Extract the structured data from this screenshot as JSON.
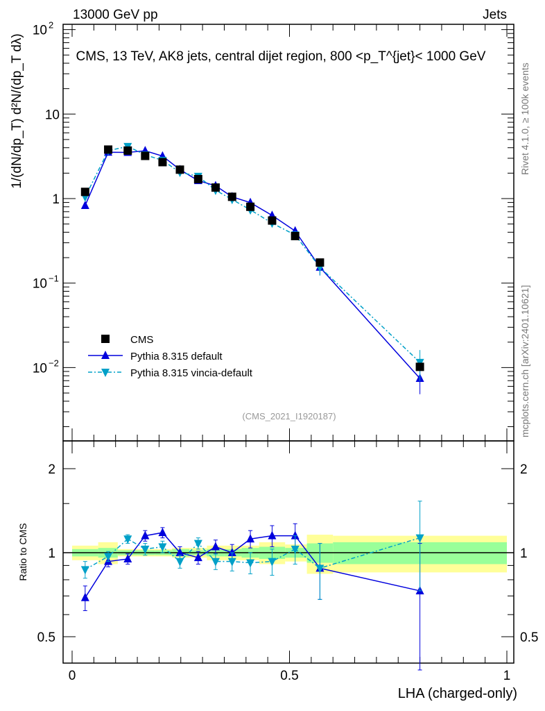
{
  "header": {
    "left": "13000 GeV pp",
    "right": "Jets"
  },
  "side": {
    "rivet": "Rivet 4.1.0, ≥ 100k events",
    "mcplots": "mcplots.cern.ch [arXiv:2401.10621]"
  },
  "chart_data": [
    {
      "type": "scatter",
      "title": "CMS, 13 TeV, AK8 jets, central dijet region, 800 <p_T^{jet}< 1000 GeV",
      "ylabel": "1/(dN/dp_T) d²N/(dp_T dλ)",
      "yscale": "log",
      "ylim": [
        0.00135,
        120
      ],
      "yticks": [
        "10^-2",
        "10^-1",
        "1",
        "10",
        "10^2"
      ],
      "annotation": "(CMS_2021_I1920187)",
      "x": [
        0.03,
        0.083,
        0.128,
        0.168,
        0.208,
        0.248,
        0.29,
        0.33,
        0.368,
        0.41,
        0.46,
        0.513,
        0.57,
        0.8
      ],
      "bin_edges": [
        0,
        0.06,
        0.105,
        0.15,
        0.19,
        0.23,
        0.27,
        0.31,
        0.35,
        0.39,
        0.43,
        0.49,
        0.54,
        0.6,
        1.0
      ],
      "series": [
        {
          "name": "CMS",
          "marker": "square",
          "color": "#000000",
          "values": [
            1.2,
            3.8,
            3.7,
            3.2,
            2.7,
            2.2,
            1.7,
            1.35,
            1.05,
            0.8,
            0.55,
            0.36,
            0.175,
            0.0102
          ]
        },
        {
          "name": "Pythia 8.315 default",
          "marker": "triangle-up",
          "color": "#0000dd",
          "ratio": [
            0.69,
            0.93,
            0.95,
            1.15,
            1.18,
            1.0,
            0.96,
            1.05,
            1.0,
            1.12,
            1.15,
            1.15,
            0.88,
            0.73
          ],
          "ratio_err": [
            0.07,
            0.04,
            0.04,
            0.05,
            0.05,
            0.05,
            0.05,
            0.06,
            0.07,
            0.08,
            0.1,
            0.12,
            0.2,
            0.35
          ]
        },
        {
          "name": "Pythia 8.315 vincia-default",
          "marker": "triangle-down",
          "color": "#00a0c8",
          "ratio": [
            0.87,
            0.97,
            1.12,
            1.03,
            1.05,
            0.93,
            1.08,
            0.93,
            0.93,
            0.92,
            0.93,
            1.03,
            0.88,
            1.13
          ],
          "ratio_err": [
            0.06,
            0.04,
            0.04,
            0.05,
            0.05,
            0.05,
            0.05,
            0.06,
            0.07,
            0.08,
            0.1,
            0.12,
            0.2,
            0.4
          ]
        }
      ],
      "legend": "bottom-left"
    },
    {
      "type": "scatter",
      "ylabel": "Ratio to CMS",
      "xlabel": "LHA (charged-only)",
      "yscale": "log",
      "ylim": [
        0.4,
        2.5
      ],
      "yticks": [
        "0.5",
        "1",
        "2"
      ],
      "xticks": [
        "0",
        "0.5",
        "1"
      ],
      "band_yellow": [
        0.06,
        0.09,
        0.03,
        0.03,
        0.03,
        0.04,
        0.04,
        0.06,
        0.06,
        0.06,
        0.09,
        0.07,
        0.16,
        0.15
      ],
      "band_green": [
        0.03,
        0.04,
        0.02,
        0.02,
        0.02,
        0.03,
        0.02,
        0.03,
        0.03,
        0.04,
        0.05,
        0.04,
        0.08,
        0.09
      ]
    }
  ]
}
